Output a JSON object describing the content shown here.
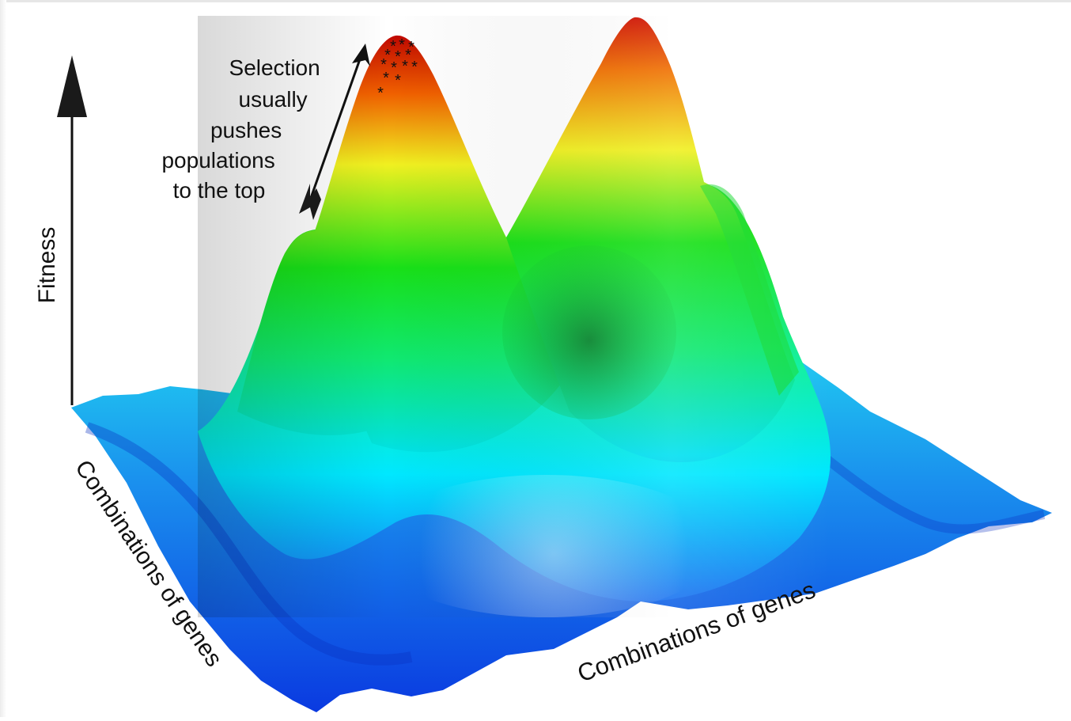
{
  "axes": {
    "vertical_label": "Fitness",
    "left_label": "Combinations of genes",
    "right_label": "Combinations of genes"
  },
  "annotation": {
    "lines": [
      "Selection",
      "usually",
      "pushes",
      "populations",
      "to the top"
    ]
  },
  "markers": {
    "symbol": "*",
    "count": 13
  },
  "colors": {
    "low": "#1030e0",
    "mid_low": "#00d8ff",
    "mid": "#10e010",
    "mid_high": "#f0f020",
    "high": "#e02000",
    "axis": "#111111"
  }
}
